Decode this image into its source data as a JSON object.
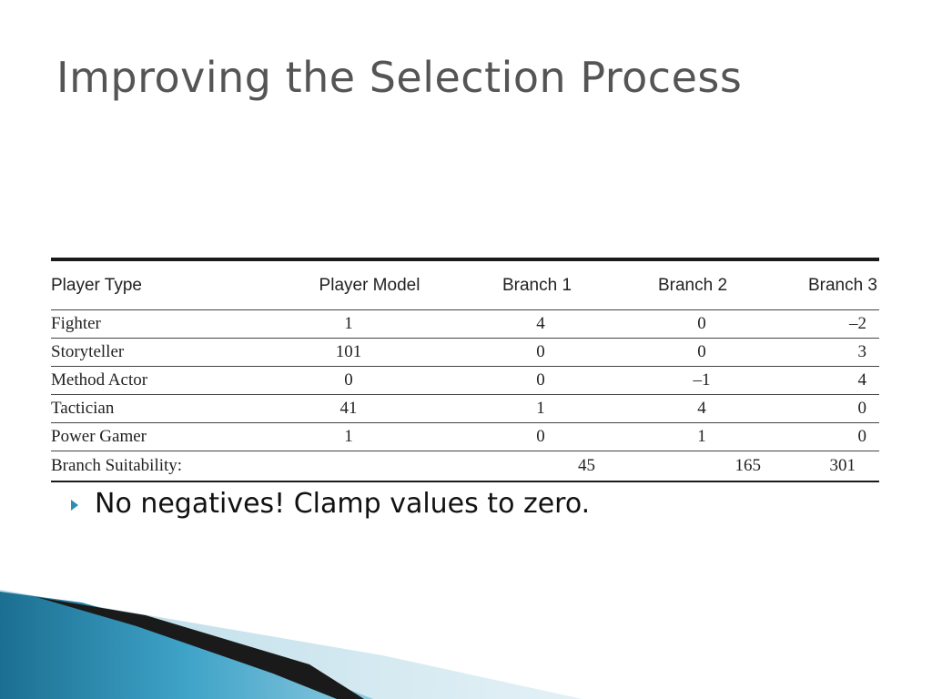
{
  "slide": {
    "title": "Improving the Selection Process",
    "bullet": "No negatives! Clamp values to zero.",
    "colors": {
      "accent": "#2a8fb3",
      "title": "#555555",
      "corner_light": "#d6e9f0",
      "corner_dark": "#1b6f91"
    }
  },
  "table": {
    "headers": [
      "Player Type",
      "Player Model",
      "Branch 1",
      "Branch 2",
      "Branch 3"
    ],
    "rows": [
      {
        "type": "Fighter",
        "model": "1",
        "b1": "4",
        "b2": "0",
        "b3": "–2"
      },
      {
        "type": "Storyteller",
        "model": "101",
        "b1": "0",
        "b2": "0",
        "b3": "3"
      },
      {
        "type": "Method Actor",
        "model": "0",
        "b1": "0",
        "b2": "–1",
        "b3": "4"
      },
      {
        "type": "Tactician",
        "model": "41",
        "b1": "1",
        "b2": "4",
        "b3": "0"
      },
      {
        "type": "Power Gamer",
        "model": "1",
        "b1": "0",
        "b2": "1",
        "b3": "0"
      }
    ],
    "summary": {
      "label": "Branch Suitability:",
      "b1": "45",
      "b2": "165",
      "b3": "301"
    }
  }
}
